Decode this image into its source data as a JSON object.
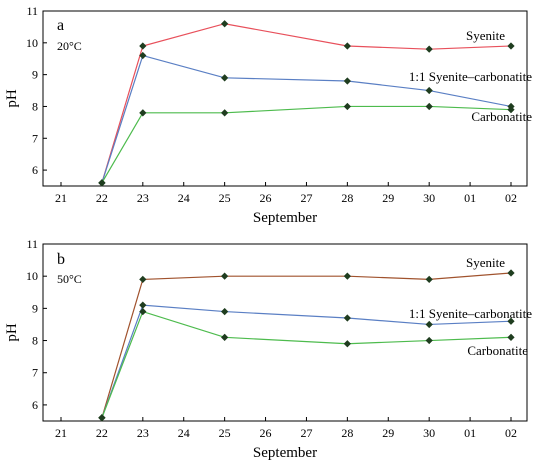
{
  "chart_data": [
    {
      "type": "line",
      "panel_label": "a",
      "condition": "20°C",
      "xlabel": "September",
      "ylabel": "pH",
      "x_tick_labels": [
        "21",
        "22",
        "23",
        "24",
        "25",
        "26",
        "27",
        "28",
        "29",
        "30",
        "01",
        "02"
      ],
      "ylim": [
        5.5,
        11
      ],
      "y_ticks": [
        6,
        7,
        8,
        9,
        10,
        11
      ],
      "grid": false,
      "legend": "inline labels at right",
      "x": [
        "22",
        "23",
        "25",
        "28",
        "30",
        "02"
      ],
      "series": [
        {
          "name": "Syenite",
          "color": "#e8505b",
          "values": [
            5.6,
            9.9,
            10.6,
            9.9,
            9.8,
            9.9
          ]
        },
        {
          "name": "1:1 Syenite–carbonatite",
          "color": "#5a7fc4",
          "values": [
            5.6,
            9.6,
            8.9,
            8.8,
            8.5,
            8.0
          ]
        },
        {
          "name": "Carbonatite",
          "color": "#4dbb4d",
          "values": [
            5.6,
            7.8,
            7.8,
            8.0,
            8.0,
            7.9
          ]
        }
      ]
    },
    {
      "type": "line",
      "panel_label": "b",
      "condition": "50°C",
      "xlabel": "September",
      "ylabel": "pH",
      "x_tick_labels": [
        "21",
        "22",
        "23",
        "24",
        "25",
        "26",
        "27",
        "28",
        "29",
        "30",
        "01",
        "02"
      ],
      "ylim": [
        5.5,
        11
      ],
      "y_ticks": [
        6,
        7,
        8,
        9,
        10,
        11
      ],
      "grid": false,
      "legend": "inline labels at right",
      "x": [
        "22",
        "23",
        "25",
        "28",
        "30",
        "02"
      ],
      "series": [
        {
          "name": "Syenite",
          "color": "#a0522d",
          "values": [
            5.6,
            9.9,
            10.0,
            10.0,
            9.9,
            10.1
          ]
        },
        {
          "name": "1:1 Syenite–carbonatite",
          "color": "#5a7fc4",
          "values": [
            5.6,
            9.1,
            8.9,
            8.7,
            8.5,
            8.6
          ]
        },
        {
          "name": "Carbonatite",
          "color": "#4dbb4d",
          "values": [
            5.6,
            8.9,
            8.1,
            7.9,
            8.0,
            8.1
          ]
        }
      ]
    }
  ]
}
